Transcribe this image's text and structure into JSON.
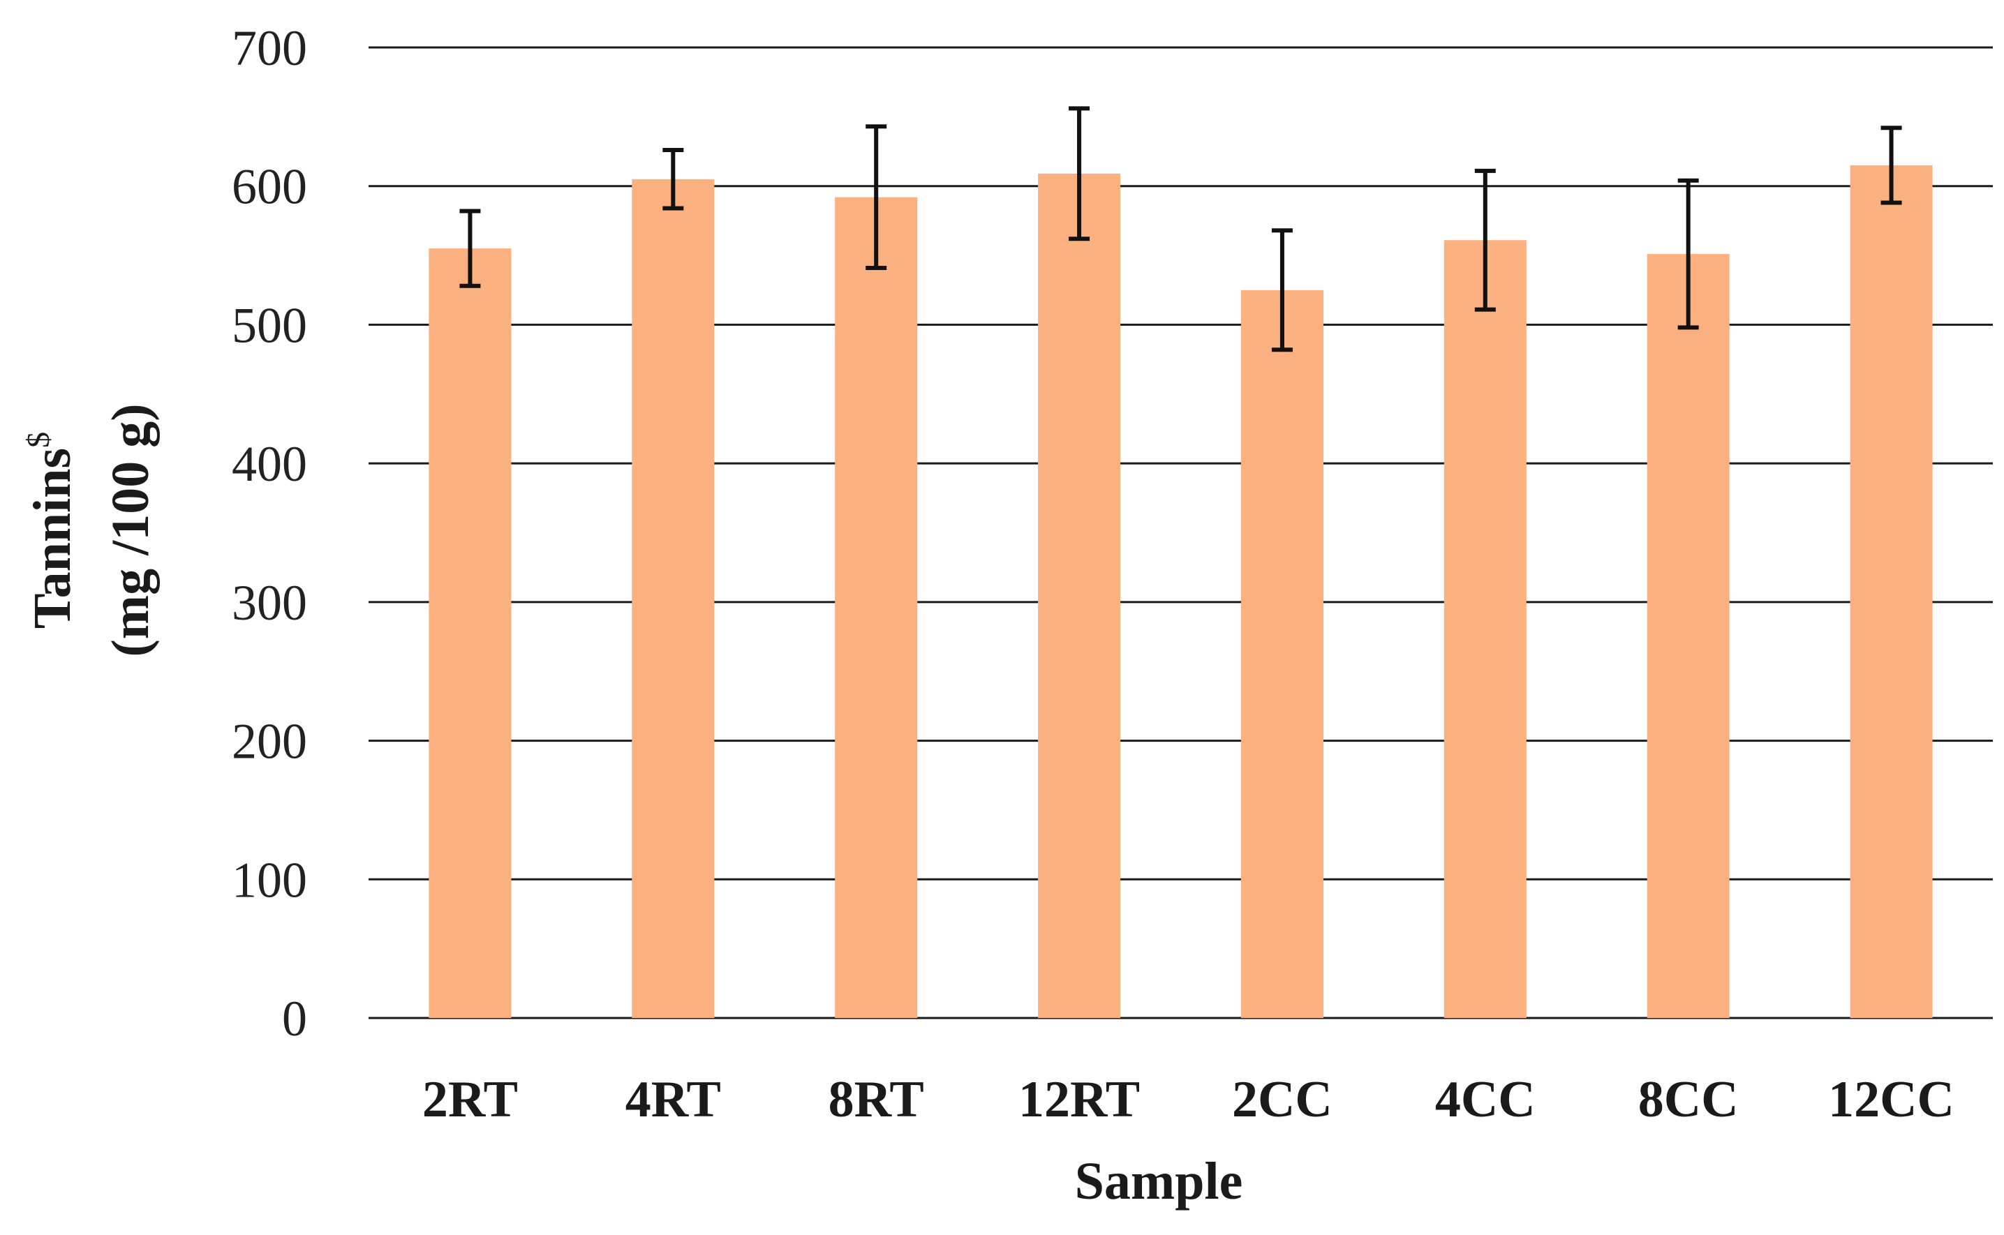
{
  "colors": {
    "bar": "#FBB080",
    "grid": "#1a1a1a",
    "error_bar": "#111111"
  },
  "chart_data": {
    "type": "bar",
    "title": "",
    "categories": [
      "2RT",
      "4RT",
      "8RT",
      "12RT",
      "2CC",
      "4CC",
      "8CC",
      "12CC"
    ],
    "series": [
      {
        "name": "Tannins",
        "values": [
          555,
          605,
          592,
          609,
          525,
          561,
          551,
          615
        ],
        "errors": [
          27,
          21,
          51,
          47,
          43,
          50,
          53,
          27
        ]
      }
    ],
    "xlabel": "Sample",
    "ylabel_line1": "Tannins",
    "ylabel_sup": "$",
    "ylabel_line2": "(mg /100 g)",
    "ylim": [
      0,
      700
    ],
    "yticks": [
      "0",
      "100",
      "200",
      "300",
      "400",
      "500",
      "600",
      "700"
    ],
    "grid": true,
    "legend": "none"
  }
}
